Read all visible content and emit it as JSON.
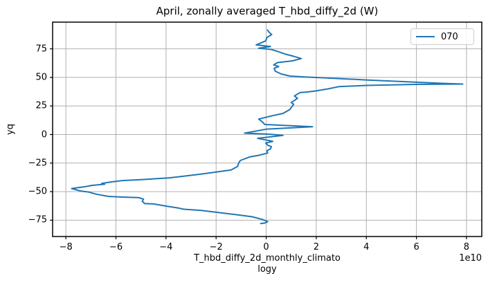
{
  "title": "April, zonally averaged T_hbd_diffy_2d (W)",
  "axes": {
    "ylabel": "yq",
    "xlabel_line1": "T_hbd_diffy_2d_monthly_climato",
    "xlabel_line2": "logy",
    "offset_text": "1e10"
  },
  "legend": {
    "position": "upper right",
    "items": [
      {
        "label": "070",
        "color": "#1f77b4"
      }
    ]
  },
  "colors": {
    "line": "#1f77b4",
    "grid": "#b0b0b0",
    "spine": "#000000",
    "background": "#ffffff"
  },
  "chart_data": {
    "type": "line",
    "title": "April, zonally averaged T_hbd_diffy_2d (W)",
    "xlabel": "T_hbd_diffy_2d_monthly_climatology",
    "ylabel": "yq",
    "x_scale_factor": "1e10",
    "grid": true,
    "legend_position": "upper right",
    "xlim": [
      -8.53,
      8.61
    ],
    "ylim": [
      -89.3,
      98.4
    ],
    "xticks": [
      -8,
      -6,
      -4,
      -2,
      0,
      2,
      4,
      6,
      8
    ],
    "yticks": [
      75,
      50,
      25,
      0,
      -25,
      -50,
      -75
    ],
    "series": [
      {
        "name": "070",
        "color": "#1f77b4",
        "x_units": "W (x 1e10)",
        "y_units": "yq (latitude)",
        "points": [
          [
            0.05,
            91.5
          ],
          [
            0.12,
            89.5
          ],
          [
            0.22,
            87.5
          ],
          [
            0.03,
            85.0
          ],
          [
            -0.02,
            82.0
          ],
          [
            -0.4,
            78.5
          ],
          [
            0.17,
            77.0
          ],
          [
            -0.3,
            75.6
          ],
          [
            0.2,
            74.5
          ],
          [
            0.42,
            73.0
          ],
          [
            0.75,
            70.5
          ],
          [
            1.1,
            68.5
          ],
          [
            1.4,
            66.5
          ],
          [
            1.05,
            64.5
          ],
          [
            0.45,
            63.0
          ],
          [
            0.3,
            61.0
          ],
          [
            0.5,
            59.5
          ],
          [
            0.32,
            58.0
          ],
          [
            0.36,
            55.5
          ],
          [
            0.6,
            53.0
          ],
          [
            0.95,
            51.2
          ],
          [
            1.6,
            50.3
          ],
          [
            2.5,
            49.4
          ],
          [
            4.0,
            47.8
          ],
          [
            6.0,
            45.8
          ],
          [
            7.3,
            44.6
          ],
          [
            7.85,
            44.2
          ],
          [
            6.0,
            43.9
          ],
          [
            4.0,
            43.0
          ],
          [
            2.9,
            41.9
          ],
          [
            2.45,
            39.9
          ],
          [
            2.0,
            38.2
          ],
          [
            1.62,
            37.2
          ],
          [
            1.36,
            36.8
          ],
          [
            1.13,
            33.8
          ],
          [
            1.25,
            31.7
          ],
          [
            1.0,
            28.0
          ],
          [
            1.1,
            26.5
          ],
          [
            0.95,
            22.0
          ],
          [
            0.67,
            18.5
          ],
          [
            0.25,
            16.5
          ],
          [
            -0.3,
            13.5
          ],
          [
            -0.15,
            11.0
          ],
          [
            -0.06,
            8.8
          ],
          [
            1.85,
            6.8
          ],
          [
            0.0,
            4.7
          ],
          [
            -0.86,
            1.2
          ],
          [
            0.2,
            0.2
          ],
          [
            0.67,
            -0.8
          ],
          [
            -0.34,
            -3.3
          ],
          [
            0.26,
            -6.0
          ],
          [
            -0.02,
            -7.5
          ],
          [
            0.07,
            -9.5
          ],
          [
            0.21,
            -10.5
          ],
          [
            0.17,
            -12.5
          ],
          [
            0.03,
            -14.2
          ],
          [
            0.06,
            -16.2
          ],
          [
            -0.3,
            -18.2
          ],
          [
            -0.66,
            -19.6
          ],
          [
            -1.03,
            -22.7
          ],
          [
            -1.1,
            -25.0
          ],
          [
            -1.14,
            -27.9
          ],
          [
            -1.4,
            -31.0
          ],
          [
            -2.6,
            -34.6
          ],
          [
            -3.35,
            -36.6
          ],
          [
            -3.9,
            -38.0
          ],
          [
            -5.0,
            -39.5
          ],
          [
            -5.74,
            -40.3
          ],
          [
            -6.2,
            -41.5
          ],
          [
            -6.57,
            -42.8
          ],
          [
            -6.45,
            -43.5
          ],
          [
            -6.94,
            -44.5
          ],
          [
            -7.2,
            -45.5
          ],
          [
            -7.77,
            -47.3
          ],
          [
            -7.4,
            -49.5
          ],
          [
            -7.1,
            -50.3
          ],
          [
            -6.8,
            -52.2
          ],
          [
            -6.3,
            -54.2
          ],
          [
            -5.9,
            -54.6
          ],
          [
            -5.1,
            -55.2
          ],
          [
            -4.9,
            -56.6
          ],
          [
            -4.95,
            -58.5
          ],
          [
            -4.85,
            -60.5
          ],
          [
            -4.5,
            -60.8
          ],
          [
            -3.98,
            -62.7
          ],
          [
            -3.52,
            -64.3
          ],
          [
            -3.3,
            -65.4
          ],
          [
            -2.6,
            -66.4
          ],
          [
            -1.86,
            -68.4
          ],
          [
            -1.12,
            -70.4
          ],
          [
            -0.57,
            -72.0
          ],
          [
            -0.16,
            -74.3
          ],
          [
            0.06,
            -76.3
          ],
          [
            -0.05,
            -77.5
          ],
          [
            -0.22,
            -78.0
          ]
        ]
      }
    ]
  }
}
